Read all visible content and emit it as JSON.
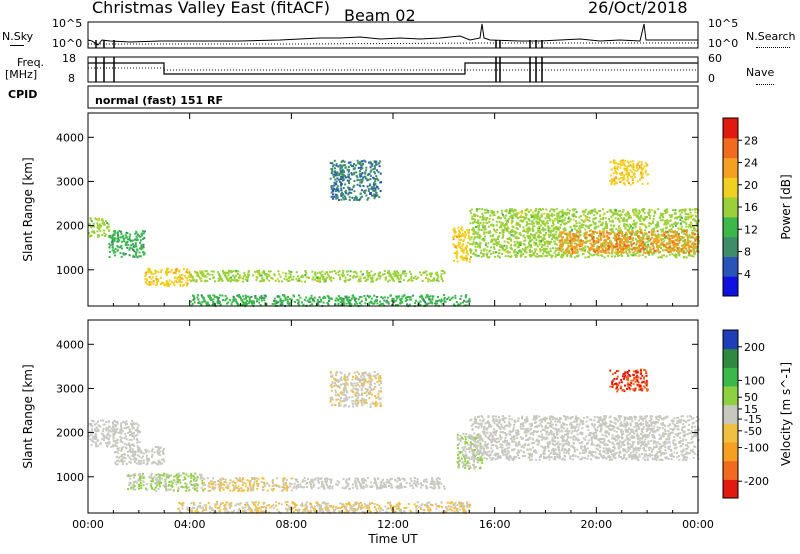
{
  "header": {
    "station": "Christmas Valley East (fitACF)",
    "beam": "Beam 02",
    "date": "26/Oct/2018"
  },
  "top_panels": {
    "nsky_label": "N.Sky",
    "nsky_ticks": [
      "10^5",
      "10^0"
    ],
    "nsearch_label": "N.Search",
    "freq_label_1": "Freq.",
    "freq_label_2": "[MHz]",
    "freq_ticks": [
      "18",
      "8"
    ],
    "nave_ticks": [
      "60",
      "0"
    ],
    "nave_label": "Nave",
    "cpid_label": "CPID",
    "cpid_value": "normal (fast) 151 RF"
  },
  "colors": {
    "power_scale": [
      "#1010e0",
      "#2a55b8",
      "#3d8c6a",
      "#3cb84b",
      "#9bd03a",
      "#f0d020",
      "#f5a020",
      "#f06a20",
      "#e01a10"
    ],
    "velocity_scale": [
      "#e01a10",
      "#f06a20",
      "#f5a020",
      "#f0c040",
      "#c8c8c0",
      "#8fd040",
      "#3cb84b",
      "#2f8a40",
      "#1f3fb8"
    ],
    "ground_scatter": "#c8c8c0"
  },
  "chart_data": [
    {
      "type": "heatmap",
      "name": "power",
      "title": "",
      "xlabel": "",
      "ylabel": "Slant Range [km]",
      "x_ticks": [
        "00:00",
        "04:00",
        "08:00",
        "12:00",
        "16:00",
        "20:00",
        "00:00"
      ],
      "xlim": [
        0,
        24
      ],
      "y_ticks": [
        1000,
        2000,
        3000,
        4000
      ],
      "ylim": [
        180,
        4550
      ],
      "colorbar": {
        "label": "Power [dB]",
        "ticks": [
          4,
          8,
          12,
          16,
          20,
          24,
          28
        ],
        "range": [
          0,
          32
        ]
      },
      "features": [
        {
          "x": [
            0.0,
            0.8
          ],
          "y": [
            1750,
            2200
          ],
          "value": 16
        },
        {
          "x": [
            0.8,
            2.2
          ],
          "y": [
            1300,
            1900
          ],
          "value": 12
        },
        {
          "x": [
            2.2,
            4.0
          ],
          "y": [
            650,
            1050
          ],
          "value": 20
        },
        {
          "x": [
            4.0,
            14.0
          ],
          "y": [
            750,
            1000
          ],
          "value": 16
        },
        {
          "x": [
            4.0,
            15.0
          ],
          "y": [
            200,
            450
          ],
          "value": 12
        },
        {
          "x": [
            9.5,
            11.5
          ],
          "y": [
            2600,
            3500
          ],
          "value": 8
        },
        {
          "x": [
            14.3,
            15.0
          ],
          "y": [
            1200,
            2000
          ],
          "value": 20
        },
        {
          "x": [
            15.0,
            24.0
          ],
          "y": [
            1300,
            2400
          ],
          "value": 16
        },
        {
          "x": [
            18.5,
            24.0
          ],
          "y": [
            1400,
            1900
          ],
          "value": 24
        },
        {
          "x": [
            20.5,
            22.0
          ],
          "y": [
            2950,
            3500
          ],
          "value": 20
        }
      ]
    },
    {
      "type": "heatmap",
      "name": "velocity",
      "title": "",
      "xlabel": "Time UT",
      "ylabel": "Slant Range [km]",
      "x_ticks": [
        "00:00",
        "04:00",
        "08:00",
        "12:00",
        "16:00",
        "20:00",
        "00:00"
      ],
      "xlim": [
        0,
        24
      ],
      "y_ticks": [
        1000,
        2000,
        3000,
        4000
      ],
      "ylim": [
        180,
        4550
      ],
      "colorbar": {
        "label": "Velocity [m s^-1]",
        "ticks": [
          200,
          100,
          50,
          15,
          -15,
          -50,
          -100,
          -200
        ],
        "range": [
          -250,
          250
        ]
      },
      "features": [
        {
          "x": [
            0.0,
            2.0
          ],
          "y": [
            1700,
            2300
          ],
          "value": 0
        },
        {
          "x": [
            1.0,
            3.0
          ],
          "y": [
            1300,
            1700
          ],
          "value": 0
        },
        {
          "x": [
            1.5,
            4.5
          ],
          "y": [
            700,
            1100
          ],
          "value": 30
        },
        {
          "x": [
            4.5,
            8.0
          ],
          "y": [
            700,
            1000
          ],
          "value": -30
        },
        {
          "x": [
            8.0,
            14.0
          ],
          "y": [
            750,
            1000
          ],
          "value": 0
        },
        {
          "x": [
            3.5,
            15.0
          ],
          "y": [
            200,
            450
          ],
          "value": -30
        },
        {
          "x": [
            9.5,
            11.5
          ],
          "y": [
            2600,
            3400
          ],
          "value": -15
        },
        {
          "x": [
            14.5,
            15.5
          ],
          "y": [
            1200,
            2000
          ],
          "value": 30
        },
        {
          "x": [
            15.0,
            24.0
          ],
          "y": [
            1400,
            2400
          ],
          "value": 0
        },
        {
          "x": [
            20.5,
            22.0
          ],
          "y": [
            2950,
            3450
          ],
          "value": -200
        }
      ]
    }
  ]
}
